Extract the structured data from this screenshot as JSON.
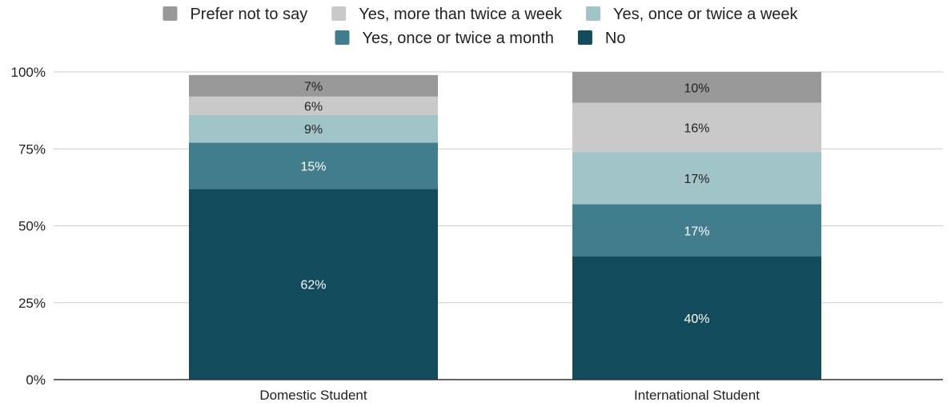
{
  "chart_data": {
    "type": "bar",
    "stacked": true,
    "categories": [
      "Domestic Student",
      "International Student"
    ],
    "series": [
      {
        "name": "No",
        "values": [
          62,
          40
        ],
        "labels": [
          "62%",
          "40%"
        ],
        "color": "#124b5c",
        "label_color": "#ffffff"
      },
      {
        "name": "Yes, once or twice a month",
        "values": [
          15,
          17
        ],
        "labels": [
          "15%",
          "17%"
        ],
        "color": "#417d8c",
        "label_color": "#ffffff"
      },
      {
        "name": "Yes, once or twice a week",
        "values": [
          9,
          17
        ],
        "labels": [
          "9%",
          "17%"
        ],
        "color": "#a1c4c8",
        "label_color": "#222222"
      },
      {
        "name": "Yes, more than twice a week",
        "values": [
          6,
          16
        ],
        "labels": [
          "6%",
          "16%"
        ],
        "color": "#c9c9c9",
        "label_color": "#222222"
      },
      {
        "name": "Prefer not to say",
        "values": [
          7,
          10
        ],
        "labels": [
          "7%",
          "10%"
        ],
        "color": "#999999",
        "label_color": "#222222"
      }
    ],
    "legend_order": [
      "Prefer not to say",
      "Yes, more than twice a week",
      "Yes, once or twice a week",
      "Yes, once or twice a month",
      "No"
    ],
    "y_ticks": [
      {
        "value": 0,
        "label": "0%"
      },
      {
        "value": 25,
        "label": "25%"
      },
      {
        "value": 50,
        "label": "50%"
      },
      {
        "value": 75,
        "label": "75%"
      },
      {
        "value": 100,
        "label": "100%"
      }
    ],
    "ylim": [
      0,
      100
    ],
    "grid": true,
    "legend_position": "top"
  }
}
